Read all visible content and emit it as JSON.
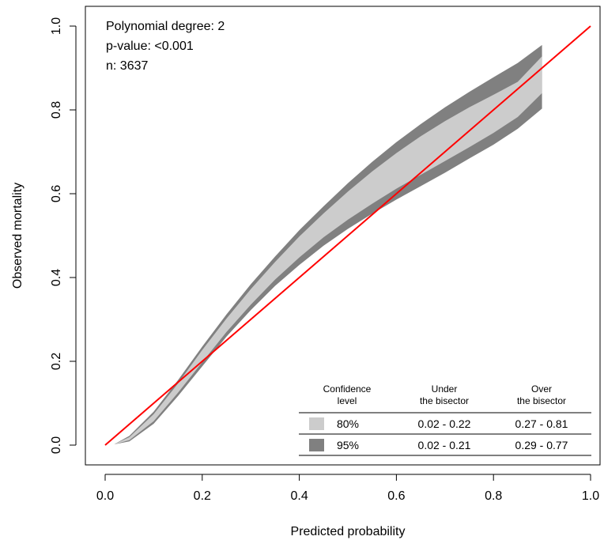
{
  "chart_data": {
    "type": "line",
    "title": "",
    "xlabel": "Predicted probability",
    "ylabel": "Observed mortality",
    "xlim": [
      0,
      1
    ],
    "ylim": [
      0,
      1
    ],
    "x_ticks": [
      "0.0",
      "0.2",
      "0.4",
      "0.6",
      "0.8",
      "1.0"
    ],
    "y_ticks": [
      "0.0",
      "0.2",
      "0.4",
      "0.6",
      "0.8",
      "1.0"
    ],
    "grid": false,
    "annotations": [
      "Polynomial degree: 2",
      "p-value: <0.001",
      "n: 3637"
    ],
    "bisector": {
      "x": [
        0,
        1
      ],
      "y": [
        0,
        1
      ],
      "color": "#ff0000"
    },
    "bands": {
      "x": [
        0.02,
        0.05,
        0.1,
        0.15,
        0.2,
        0.25,
        0.3,
        0.35,
        0.4,
        0.45,
        0.5,
        0.55,
        0.6,
        0.65,
        0.7,
        0.75,
        0.8,
        0.85,
        0.9
      ],
      "ci95_upper": [
        0.003,
        0.022,
        0.08,
        0.155,
        0.235,
        0.312,
        0.384,
        0.45,
        0.513,
        0.57,
        0.625,
        0.676,
        0.723,
        0.766,
        0.806,
        0.843,
        0.878,
        0.912,
        0.955
      ],
      "ci80_upper": [
        0.003,
        0.019,
        0.074,
        0.147,
        0.227,
        0.302,
        0.372,
        0.437,
        0.498,
        0.553,
        0.605,
        0.653,
        0.697,
        0.737,
        0.773,
        0.806,
        0.836,
        0.867,
        0.928
      ],
      "ci80_lower": [
        0.002,
        0.012,
        0.057,
        0.125,
        0.198,
        0.27,
        0.335,
        0.395,
        0.448,
        0.496,
        0.538,
        0.576,
        0.612,
        0.645,
        0.678,
        0.711,
        0.745,
        0.783,
        0.84
      ],
      "ci95_lower": [
        0.002,
        0.009,
        0.051,
        0.117,
        0.188,
        0.259,
        0.322,
        0.38,
        0.43,
        0.476,
        0.516,
        0.552,
        0.586,
        0.618,
        0.65,
        0.684,
        0.717,
        0.755,
        0.803
      ]
    },
    "legend": {
      "position": "bottom-right",
      "headers": [
        "Confidence\nlevel",
        "Under\nthe bisector",
        "Over\nthe bisector"
      ],
      "rows": [
        {
          "label": "80%",
          "under": "0.02 - 0.22",
          "over": "0.27 - 0.81",
          "color": "#cccccc"
        },
        {
          "label": "95%",
          "under": "0.02 - 0.21",
          "over": "0.29 - 0.77",
          "color": "#808080"
        }
      ]
    },
    "colors": {
      "ci80": "#cccccc",
      "ci95": "#808080",
      "bisector": "#ff0000"
    }
  }
}
